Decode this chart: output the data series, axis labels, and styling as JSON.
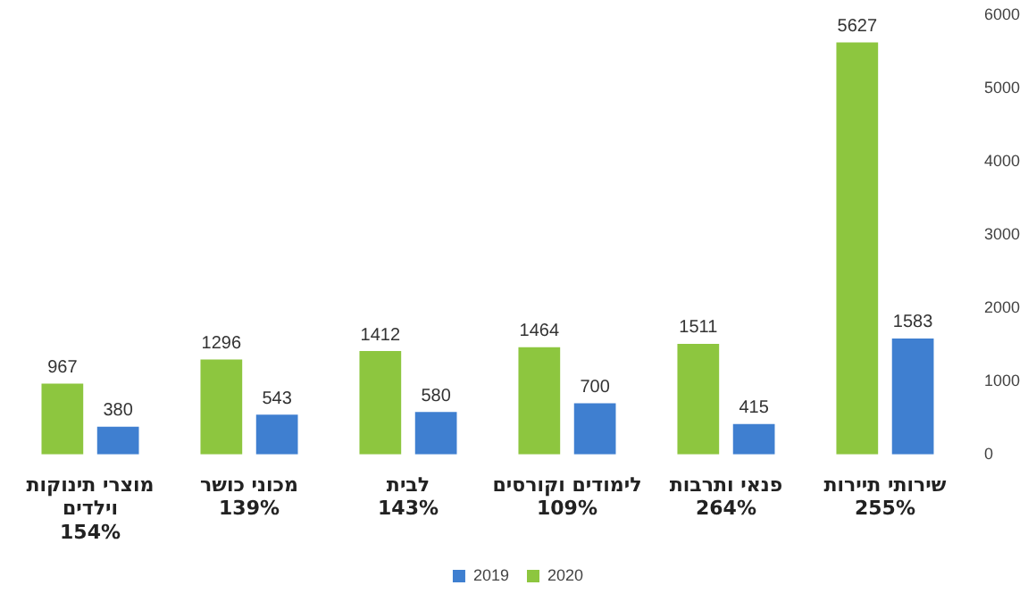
{
  "chart_data": {
    "type": "bar",
    "categories": [
      "מוצרי תינוקות\nוילדים\n154%",
      "מכוני כושר\n139%",
      "לבית\n143%",
      "לימודים וקורסים\n109%",
      "פנאי ותרבות\n264%",
      "שירותי תיירות\n255%"
    ],
    "series": [
      {
        "name": "2020",
        "color": "#8dc63f",
        "values": [
          967,
          1296,
          1412,
          1464,
          1511,
          5627
        ]
      },
      {
        "name": "2019",
        "color": "#3f7fd0",
        "values": [
          380,
          543,
          580,
          700,
          415,
          1583
        ]
      }
    ],
    "ylim": [
      0,
      6000
    ],
    "yticks": [
      0,
      1000,
      2000,
      3000,
      4000,
      5000,
      6000
    ],
    "grid": false,
    "legend": "bottom",
    "data_labels": true
  }
}
